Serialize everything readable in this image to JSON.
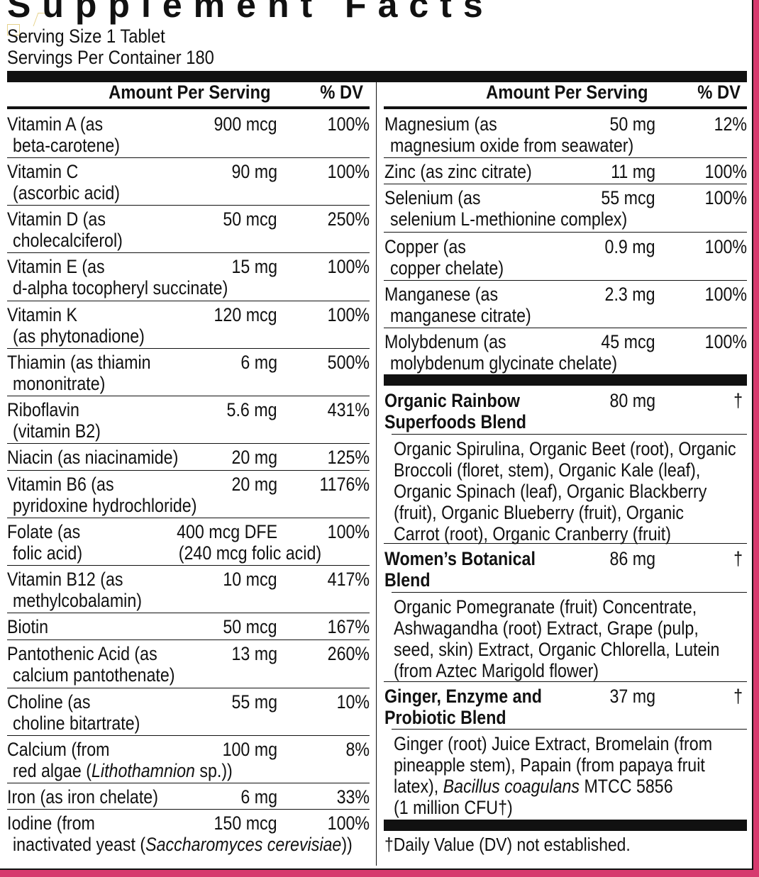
{
  "title": "Supplement Facts",
  "serving_size": "Serving Size 1 Tablet",
  "servings_per_container": "Servings Per Container 180",
  "headers": {
    "amount": "Amount Per Serving",
    "dv": "% DV"
  },
  "left_rows": [
    {
      "name": "Vitamin A (as",
      "sub": "beta-carotene)",
      "amount": "900 mcg",
      "dv": "100%"
    },
    {
      "name": "Vitamin C",
      "sub": "(ascorbic acid)",
      "amount": "90 mg",
      "dv": "100%"
    },
    {
      "name": "Vitamin D (as",
      "sub": "cholecalciferol)",
      "amount": "50 mcg",
      "dv": "250%"
    },
    {
      "name": "Vitamin E (as",
      "sub": "d-alpha tocopheryl succinate)",
      "amount": "15 mg",
      "dv": "100%"
    },
    {
      "name": "Vitamin K",
      "sub": "(as phytonadione)",
      "amount": "120 mcg",
      "dv": "100%"
    },
    {
      "name": "Thiamin (as thiamin",
      "sub": "mononitrate)",
      "amount": "6 mg",
      "dv": "500%"
    },
    {
      "name": "Riboflavin",
      "sub": "(vitamin B2)",
      "amount": "5.6 mg",
      "dv": "431%"
    },
    {
      "name": "Niacin (as niacinamide)",
      "sub": "",
      "amount": "20 mg",
      "dv": "125%"
    },
    {
      "name": "Vitamin B6 (as",
      "sub": "pyridoxine hydrochloride)",
      "amount": "20 mg",
      "dv": "1176%"
    },
    {
      "name": "Folate (as",
      "sub": "folic acid)",
      "amount": "400 mcg DFE",
      "amount2": "(240 mcg folic acid)",
      "dv": "100%"
    },
    {
      "name": "Vitamin B12 (as",
      "sub": "methylcobalamin)",
      "amount": "10 mcg",
      "dv": "417%"
    },
    {
      "name": "Biotin",
      "sub": "",
      "amount": "50 mcg",
      "dv": "167%"
    },
    {
      "name": "Pantothenic Acid (as",
      "sub": "calcium pantothenate)",
      "amount": "13 mg",
      "dv": "260%"
    },
    {
      "name": "Choline (as",
      "sub": "choline bitartrate)",
      "amount": "55 mg",
      "dv": "10%"
    },
    {
      "name": "Calcium (from",
      "sub_pre": "red algae (",
      "sub_italic": "Lithothamnion",
      "sub_post": " sp.))",
      "amount": "100 mg",
      "dv": "8%"
    },
    {
      "name": "Iron (as iron chelate)",
      "sub": "",
      "amount": "6 mg",
      "dv": "33%"
    },
    {
      "name": "Iodine (from",
      "sub_pre": "inactivated yeast (",
      "sub_italic": "Saccharomyces cerevisiae",
      "sub_post": "))",
      "amount": "150 mcg",
      "dv": "100%"
    }
  ],
  "right_rows": [
    {
      "name": "Magnesium (as",
      "sub": "magnesium oxide from seawater)",
      "amount": "50 mg",
      "dv": "12%"
    },
    {
      "name": "Zinc (as zinc citrate)",
      "sub": "",
      "amount": "11 mg",
      "dv": "100%"
    },
    {
      "name": "Selenium (as",
      "sub": "selenium L-methionine complex)",
      "amount": "55 mcg",
      "dv": "100%"
    },
    {
      "name": "Copper (as",
      "sub": "copper chelate)",
      "amount": "0.9 mg",
      "dv": "100%"
    },
    {
      "name": "Manganese (as",
      "sub": "manganese citrate)",
      "amount": "2.3 mg",
      "dv": "100%"
    },
    {
      "name": "Molybdenum (as",
      "sub": "molybdenum glycinate chelate)",
      "amount": "45 mcg",
      "dv": "100%"
    }
  ],
  "blends": [
    {
      "name1": "Organic Rainbow",
      "name2": "Superfoods Blend",
      "amount": "80 mg",
      "dv": "†",
      "lines": [
        "Organic Spirulina, Organic Beet (root), Organic",
        "Broccoli (floret, stem), Organic Kale (leaf),",
        "Organic Spinach (leaf), Organic Blackberry",
        "(fruit), Organic Blueberry (fruit), Organic",
        "Carrot (root), Organic Cranberry (fruit)"
      ]
    },
    {
      "name1": "Women’s Botanical",
      "name2": "Blend",
      "amount": "86 mg",
      "dv": "†",
      "lines": [
        "Organic Pomegranate (fruit) Concentrate,",
        "Ashwagandha (root) Extract, Grape (pulp,",
        "seed, skin) Extract, Organic Chlorella, Lutein",
        "(from Aztec Marigold flower)"
      ]
    },
    {
      "name1": "Ginger, Enzyme and",
      "name2": "Probiotic Blend",
      "amount": "37 mg",
      "dv": "†",
      "lines": [
        "Ginger (root) Juice Extract, Bromelain (from",
        "pineapple stem), Papain (from papaya fruit"
      ],
      "line3_pre": "latex), ",
      "line3_italic": "Bacillus coagulans",
      "line3_post": " MTCC 5856",
      "line4": "(1 million CFU†)"
    }
  ],
  "footnote": "†Daily Value (DV) not established.",
  "colors": {
    "border_accent": "#d63a6e",
    "ink": "#111111"
  }
}
